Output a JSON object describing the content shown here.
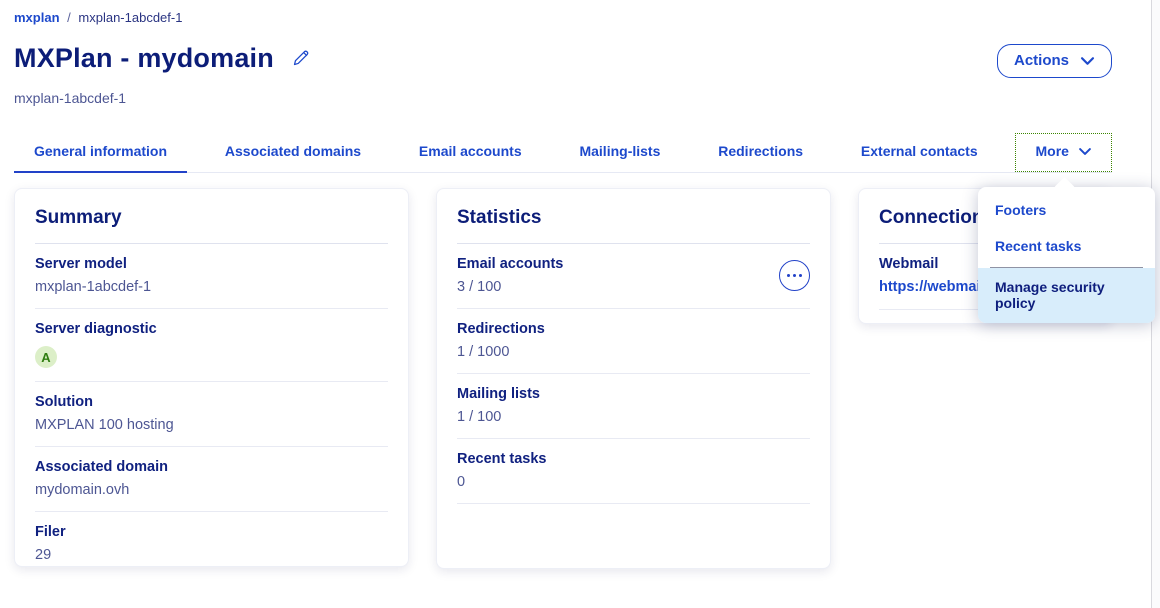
{
  "page": {
    "breadcrumb": {
      "parent": "mxplan",
      "separator": "/",
      "current": "mxplan-1abcdef-1"
    },
    "title": "MXPlan - mydomain",
    "subtitle": "mxplan-1abcdef-1",
    "actions_button": "Actions"
  },
  "tabs": {
    "items": [
      {
        "label": "General information",
        "active": true,
        "focused": false,
        "has_chevron": false
      },
      {
        "label": "Associated domains",
        "active": false,
        "focused": false,
        "has_chevron": false
      },
      {
        "label": "Email accounts",
        "active": false,
        "focused": false,
        "has_chevron": false
      },
      {
        "label": "Mailing-lists",
        "active": false,
        "focused": false,
        "has_chevron": false
      },
      {
        "label": "Redirections",
        "active": false,
        "focused": false,
        "has_chevron": false
      },
      {
        "label": "External contacts",
        "active": false,
        "focused": false,
        "has_chevron": false
      },
      {
        "label": "More",
        "active": false,
        "focused": true,
        "has_chevron": true
      }
    ]
  },
  "more_menu": {
    "items": [
      {
        "label": "Footers",
        "highlighted": false,
        "divider_before": false
      },
      {
        "label": "Recent tasks",
        "highlighted": false,
        "divider_before": false
      },
      {
        "label": "Manage security policy",
        "highlighted": true,
        "divider_before": true
      }
    ]
  },
  "cards": {
    "summary": {
      "title": "Summary",
      "fields": [
        {
          "label": "Server model",
          "value": "mxplan-1abcdef-1",
          "type": "text"
        },
        {
          "label": "Server diagnostic",
          "value": "A",
          "type": "badge"
        },
        {
          "label": "Solution",
          "value": "MXPLAN 100 hosting",
          "type": "text"
        },
        {
          "label": "Associated domain",
          "value": "mydomain.ovh",
          "type": "text"
        },
        {
          "label": "Filer",
          "value": "29",
          "type": "text"
        }
      ]
    },
    "statistics": {
      "title": "Statistics",
      "fields": [
        {
          "label": "Email accounts",
          "value": "3 / 100",
          "type": "text",
          "has_menu_button": true
        },
        {
          "label": "Redirections",
          "value": "1 / 1000",
          "type": "text"
        },
        {
          "label": "Mailing lists",
          "value": "1 / 100",
          "type": "text"
        },
        {
          "label": "Recent tasks",
          "value": "0",
          "type": "text"
        }
      ]
    },
    "connection": {
      "title": "Connection",
      "fields": [
        {
          "label": "Webmail",
          "value": "https://webmail",
          "type": "link"
        }
      ]
    }
  },
  "colors": {
    "primary_blue": "#1d49cc",
    "heading_navy": "#0c1d78",
    "text_muted": "#4d5693",
    "tab_underline": "#2242c8",
    "menu_highlight": "#d8edfb",
    "badge_green_bg": "#dcefc8",
    "badge_green_text": "#2f7d10",
    "focus_outline_green": "#3c8500"
  }
}
